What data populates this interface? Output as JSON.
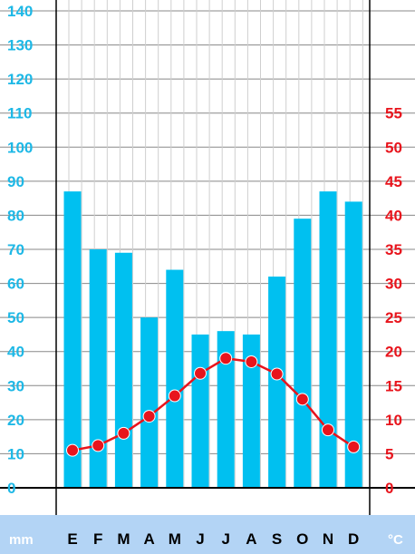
{
  "chart_data": {
    "type": "bar+line",
    "categories": [
      "E",
      "F",
      "M",
      "A",
      "M",
      "J",
      "J",
      "A",
      "S",
      "O",
      "N",
      "D"
    ],
    "series": [
      {
        "axis": "left",
        "type": "bar",
        "color": "#00c0f0",
        "values": [
          87,
          70,
          69,
          50,
          64,
          45,
          46,
          45,
          62,
          79,
          87,
          84
        ]
      },
      {
        "axis": "right",
        "type": "line",
        "color": "#e8141c",
        "values": [
          5.5,
          6.2,
          8,
          10.5,
          13.5,
          16.8,
          19,
          18.5,
          16.7,
          13,
          8.5,
          6
        ]
      }
    ],
    "left_axis": {
      "unit": "mm",
      "ticks": [
        0,
        10,
        20,
        30,
        40,
        50,
        60,
        70,
        80,
        90,
        100,
        110,
        120,
        130,
        140
      ],
      "ylim": [
        0,
        140
      ]
    },
    "right_axis": {
      "unit": "°C",
      "ticks": [
        0,
        5,
        10,
        15,
        20,
        25,
        30,
        35,
        40,
        45,
        50,
        55
      ],
      "ylim": [
        0,
        70
      ]
    },
    "grid": true,
    "colors": {
      "bar": "#00c0f0",
      "line": "#e8141c",
      "left_ticks": "#1eb8e6",
      "right_ticks": "#e8141c",
      "footer": "#b3d4f5"
    }
  }
}
